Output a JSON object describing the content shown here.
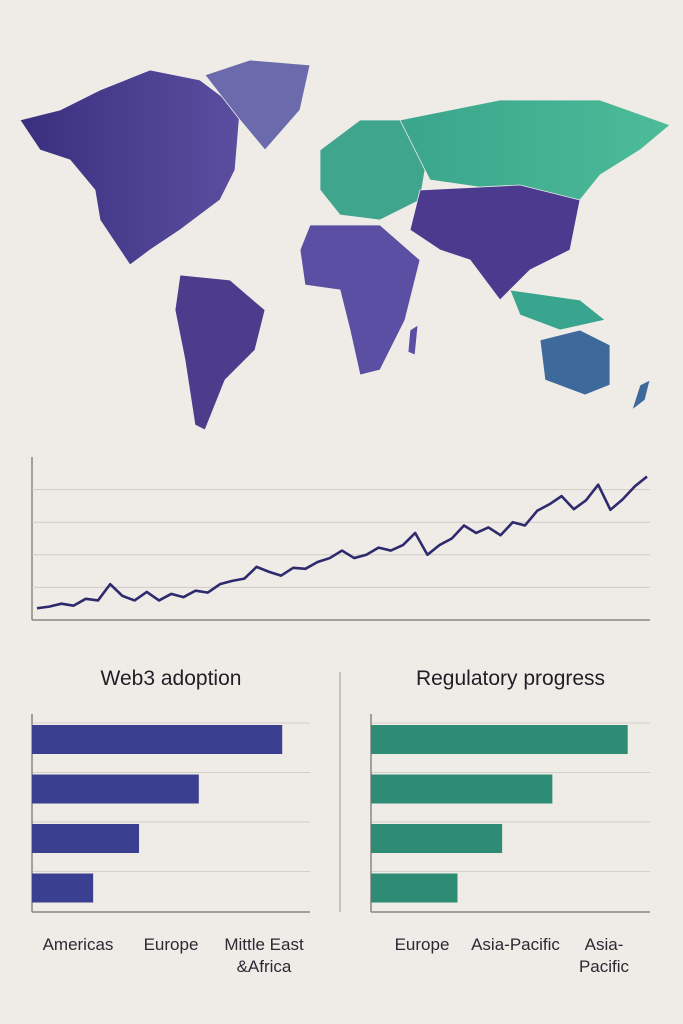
{
  "chart_data": [
    {
      "type": "line",
      "color": "#2e2a6e",
      "ylim": [
        0,
        5
      ],
      "yticks": [
        1,
        2,
        3,
        4
      ],
      "grid": true,
      "values": [
        0.36,
        0.41,
        0.5,
        0.44,
        0.65,
        0.6,
        1.1,
        0.74,
        0.6,
        0.86,
        0.6,
        0.8,
        0.7,
        0.9,
        0.84,
        1.1,
        1.2,
        1.27,
        1.63,
        1.48,
        1.36,
        1.6,
        1.57,
        1.78,
        1.9,
        2.13,
        1.9,
        2.0,
        2.22,
        2.13,
        2.3,
        2.67,
        2.0,
        2.3,
        2.5,
        2.9,
        2.67,
        2.84,
        2.6,
        3.0,
        2.9,
        3.35,
        3.55,
        3.8,
        3.4,
        3.67,
        4.15,
        3.38,
        3.7,
        4.1,
        4.4
      ]
    },
    {
      "type": "bar",
      "title": "Web3 adoption",
      "color": "#3b3f8f",
      "xlim": [
        0,
        100
      ],
      "grid": true,
      "categories": [
        "Americas",
        "Europe",
        "Mittle East &Africa",
        null
      ],
      "values": [
        90,
        60,
        38.5,
        22
      ]
    },
    {
      "type": "bar",
      "title": "Regulatory progress",
      "color": "#2e8b74",
      "xlim": [
        0,
        100
      ],
      "grid": true,
      "categories": [
        "Europe",
        "Asia-Pacific",
        "Asia-Pacific",
        null
      ],
      "values": [
        92,
        65,
        47,
        31
      ]
    }
  ]
}
